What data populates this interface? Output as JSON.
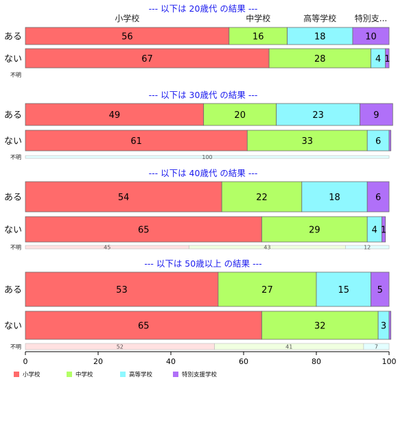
{
  "chart_data": {
    "type": "bar",
    "orientation": "horizontal",
    "stacked": true,
    "xlim": [
      0,
      100
    ],
    "x_ticks": [
      "0",
      "20",
      "40",
      "60",
      "80",
      "100"
    ],
    "legend": [
      "小学校",
      "中学校",
      "高等学校",
      "特別支援学校"
    ],
    "legend_position": "bottom-left",
    "colors": [
      "#ff6b6b",
      "#b3ff66",
      "#8ff8ff",
      "#b070f8"
    ],
    "faded_colors": [
      "#ffe1e1",
      "#f0ffe0",
      "#e3feff",
      "#efe2fe"
    ],
    "header_labels": [
      "小学校",
      "中学校",
      "高等学校",
      "特別支..."
    ],
    "panels": [
      {
        "title": "--- 以下は 20歳代 の結果 ---",
        "rows": [
          {
            "label": "ある",
            "values": [
              56,
              16,
              18,
              10
            ],
            "labels": [
              "56",
              "16",
              "18",
              "10"
            ]
          },
          {
            "label": "ない",
            "values": [
              67,
              28,
              4,
              1
            ],
            "labels": [
              "67",
              "28",
              "4",
              "1"
            ]
          },
          {
            "label": "不明",
            "values": [],
            "labels": []
          }
        ]
      },
      {
        "title": "--- 以下は 30歳代 の結果 ---",
        "rows": [
          {
            "label": "ある",
            "values": [
              49,
              20,
              23,
              9
            ],
            "labels": [
              "49",
              "20",
              "23",
              "9"
            ]
          },
          {
            "label": "ない",
            "values": [
              61,
              33,
              6,
              0.5
            ],
            "labels": [
              "61",
              "33",
              "6",
              ""
            ]
          },
          {
            "label": "不明",
            "values": [
              0,
              0,
              100,
              0
            ],
            "labels": [
              "",
              "",
              "100",
              ""
            ]
          }
        ]
      },
      {
        "title": "--- 以下は 40歳代 の結果 ---",
        "rows": [
          {
            "label": "ある",
            "values": [
              54,
              22,
              18,
              6
            ],
            "labels": [
              "54",
              "22",
              "18",
              "6"
            ]
          },
          {
            "label": "ない",
            "values": [
              65,
              29,
              4,
              1
            ],
            "labels": [
              "65",
              "29",
              "4",
              "1"
            ]
          },
          {
            "label": "不明",
            "values": [
              45,
              43,
              12,
              0
            ],
            "labels": [
              "45",
              "43",
              "12",
              ""
            ]
          }
        ]
      },
      {
        "title": "--- 以下は 50歳以上 の結果 ---",
        "rows": [
          {
            "label": "ある",
            "values": [
              53,
              27,
              15,
              5
            ],
            "labels": [
              "53",
              "27",
              "15",
              "5"
            ]
          },
          {
            "label": "ない",
            "values": [
              65,
              32,
              3,
              0.5
            ],
            "labels": [
              "65",
              "32",
              "3",
              ""
            ]
          },
          {
            "label": "不明",
            "values": [
              52,
              41,
              7,
              0
            ],
            "labels": [
              "52",
              "41",
              "7",
              ""
            ]
          }
        ]
      }
    ]
  }
}
